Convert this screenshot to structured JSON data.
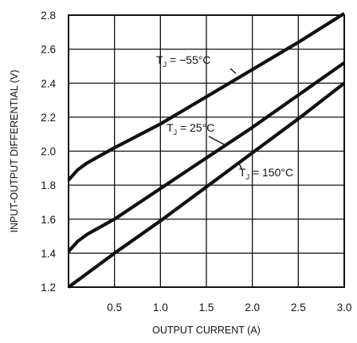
{
  "chart_data": {
    "type": "line",
    "xlabel": "OUTPUT CURRENT (A)",
    "ylabel": "INPUT-OUTPUT DIFFERENTIAL (V)",
    "xlim": [
      0,
      3.0
    ],
    "ylim": [
      1.2,
      2.8
    ],
    "xticks": [
      "0.5",
      "1.0",
      "1.5",
      "2.0",
      "2.5",
      "3.0"
    ],
    "yticks": [
      "1.2",
      "1.4",
      "1.6",
      "1.8",
      "2.0",
      "2.2",
      "2.4",
      "2.6",
      "2.8"
    ],
    "grid": true,
    "series": [
      {
        "name": "TJ = −55°C",
        "x": [
          0,
          0.1,
          0.2,
          0.3,
          0.5,
          1.0,
          1.5,
          2.0,
          2.5,
          3.0
        ],
        "y": [
          1.83,
          1.89,
          1.93,
          1.96,
          2.02,
          2.16,
          2.32,
          2.48,
          2.64,
          2.81
        ]
      },
      {
        "name": "TJ = 25°C",
        "x": [
          0,
          0.1,
          0.2,
          0.3,
          0.5,
          1.0,
          1.5,
          2.0,
          2.5,
          3.0
        ],
        "y": [
          1.41,
          1.47,
          1.51,
          1.54,
          1.6,
          1.78,
          1.96,
          2.14,
          2.33,
          2.52
        ]
      },
      {
        "name": "TJ = 150°C",
        "x": [
          0,
          0.1,
          0.2,
          0.5,
          1.0,
          1.5,
          2.0,
          2.5,
          3.0
        ],
        "y": [
          1.2,
          1.24,
          1.28,
          1.4,
          1.59,
          1.79,
          1.99,
          2.19,
          2.4
        ]
      }
    ],
    "annotations": [
      {
        "main": "T",
        "sub": "J",
        "rest": " = −55°C"
      },
      {
        "main": "T",
        "sub": "J",
        "rest": " = 25°C"
      },
      {
        "main": "T",
        "sub": "J",
        "rest": " = 150°C"
      }
    ]
  }
}
